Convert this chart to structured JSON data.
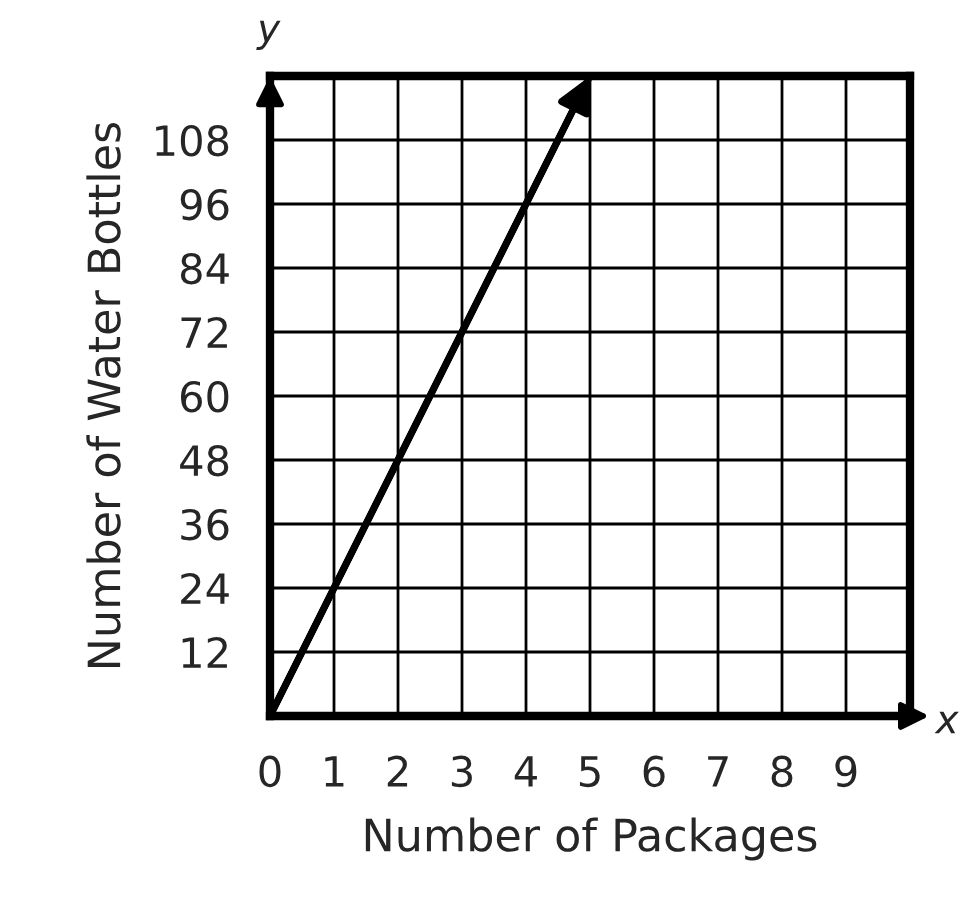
{
  "chart_data": {
    "type": "line",
    "xlabel": "Number of Packages",
    "ylabel": "Number of Water Bottles",
    "x": [
      0,
      5
    ],
    "series": [
      {
        "color": "#000000",
        "values": [
          0,
          120
        ]
      }
    ],
    "xlim": [
      0,
      10
    ],
    "ylim": [
      0,
      120
    ],
    "xticks": [
      0,
      1,
      2,
      3,
      4,
      5,
      6,
      7,
      8,
      9
    ],
    "yticks": [
      12,
      24,
      36,
      48,
      60,
      72,
      84,
      96,
      108
    ],
    "grid": true,
    "marker": "none",
    "line_style": "solid",
    "legend": false,
    "annotations": [
      "x",
      "y"
    ]
  }
}
